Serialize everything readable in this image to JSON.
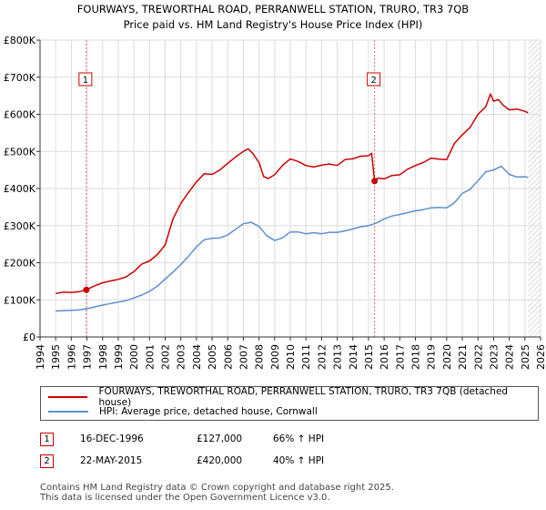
{
  "chart_data": {
    "type": "line",
    "title": "FOURWAYS, TREWORTHAL ROAD, PERRANWELL STATION, TRURO, TR3 7QB",
    "subtitle": "Price paid vs. HM Land Registry's House Price Index (HPI)",
    "xlabel": "",
    "ylabel": "",
    "xlim": [
      1994,
      2026
    ],
    "ylim": [
      0,
      800000
    ],
    "grid": true,
    "x_ticks": [
      "1994",
      "1995",
      "1996",
      "1997",
      "1998",
      "1999",
      "2000",
      "2001",
      "2002",
      "2003",
      "2004",
      "2005",
      "2006",
      "2007",
      "2008",
      "2009",
      "2010",
      "2011",
      "2012",
      "2013",
      "2014",
      "2015",
      "2016",
      "2017",
      "2018",
      "2019",
      "2020",
      "2021",
      "2022",
      "2023",
      "2024",
      "2025",
      "2026"
    ],
    "y_ticks": [
      {
        "value": 0,
        "label": "£0"
      },
      {
        "value": 100000,
        "label": "£100K"
      },
      {
        "value": 200000,
        "label": "£200K"
      },
      {
        "value": 300000,
        "label": "£300K"
      },
      {
        "value": 400000,
        "label": "£400K"
      },
      {
        "value": 500000,
        "label": "£500K"
      },
      {
        "value": 600000,
        "label": "£600K"
      },
      {
        "value": 700000,
        "label": "£700K"
      },
      {
        "value": 800000,
        "label": "£800K"
      }
    ],
    "series": [
      {
        "name": "FOURWAYS, TREWORTHAL ROAD, PERRANWELL STATION, TRURO, TR3 7QB (detached house)",
        "color": "#cc0000",
        "x": [
          1995.0,
          1995.5,
          1996.0,
          1996.5,
          1996.96,
          1997.5,
          1998.0,
          1998.5,
          1999.0,
          1999.5,
          2000.0,
          2000.5,
          2001.0,
          2001.5,
          2002.0,
          2002.5,
          2003.0,
          2003.5,
          2004.0,
          2004.5,
          2005.0,
          2005.5,
          2006.0,
          2006.5,
          2007.0,
          2007.3,
          2007.6,
          2008.0,
          2008.3,
          2008.6,
          2009.0,
          2009.5,
          2010.0,
          2010.5,
          2011.0,
          2011.5,
          2012.0,
          2012.5,
          2013.0,
          2013.5,
          2014.0,
          2014.5,
          2015.0,
          2015.2,
          2015.39,
          2015.6,
          2016.0,
          2016.5,
          2017.0,
          2017.5,
          2018.0,
          2018.5,
          2019.0,
          2019.5,
          2020.0,
          2020.5,
          2021.0,
          2021.5,
          2022.0,
          2022.5,
          2022.8,
          2023.0,
          2023.3,
          2023.6,
          2024.0,
          2024.5,
          2025.0,
          2025.2
        ],
        "values": [
          117000,
          121000,
          120000,
          122000,
          127000,
          138000,
          146000,
          151000,
          155000,
          162000,
          176000,
          196000,
          205000,
          222000,
          248000,
          318000,
          360000,
          390000,
          418000,
          440000,
          438000,
          450000,
          468000,
          485000,
          500000,
          507000,
          495000,
          470000,
          432000,
          427000,
          437000,
          462000,
          480000,
          473000,
          462000,
          458000,
          463000,
          466000,
          462000,
          478000,
          480000,
          487000,
          488000,
          495000,
          420000,
          428000,
          426000,
          435000,
          437000,
          452000,
          462000,
          470000,
          482000,
          479000,
          478000,
          522000,
          545000,
          565000,
          600000,
          620000,
          655000,
          635000,
          640000,
          625000,
          612000,
          614000,
          608000,
          604000
        ]
      },
      {
        "name": "HPI: Average price, detached house, Cornwall",
        "color": "#5b8fd0",
        "x": [
          1995.0,
          1995.5,
          1996.0,
          1996.5,
          1997.0,
          1997.5,
          1998.0,
          1998.5,
          1999.0,
          1999.5,
          2000.0,
          2000.5,
          2001.0,
          2001.5,
          2002.0,
          2002.5,
          2003.0,
          2003.5,
          2004.0,
          2004.5,
          2005.0,
          2005.5,
          2006.0,
          2006.5,
          2007.0,
          2007.5,
          2008.0,
          2008.5,
          2009.0,
          2009.5,
          2010.0,
          2010.5,
          2011.0,
          2011.5,
          2012.0,
          2012.5,
          2013.0,
          2013.5,
          2014.0,
          2014.5,
          2015.0,
          2015.5,
          2016.0,
          2016.5,
          2017.0,
          2017.5,
          2018.0,
          2018.5,
          2019.0,
          2019.5,
          2020.0,
          2020.5,
          2021.0,
          2021.5,
          2022.0,
          2022.5,
          2023.0,
          2023.5,
          2024.0,
          2024.5,
          2025.0,
          2025.2
        ],
        "values": [
          70000,
          71000,
          72000,
          73000,
          76000,
          81000,
          86000,
          90000,
          94000,
          98000,
          105000,
          113000,
          123000,
          137000,
          156000,
          175000,
          195000,
          218000,
          243000,
          262000,
          266000,
          267000,
          275000,
          290000,
          305000,
          309000,
          298000,
          273000,
          260000,
          267000,
          283000,
          283000,
          278000,
          281000,
          278000,
          282000,
          282000,
          286000,
          291000,
          297000,
          300000,
          307000,
          318000,
          326000,
          330000,
          335000,
          340000,
          343000,
          348000,
          349000,
          348000,
          362000,
          387000,
          398000,
          421000,
          445000,
          450000,
          460000,
          438000,
          431000,
          432000,
          430000
        ]
      }
    ],
    "sale_markers": [
      {
        "label": "1",
        "x": 1996.96,
        "value": 127000
      },
      {
        "label": "2",
        "x": 2015.39,
        "value": 420000
      }
    ]
  },
  "legend": {
    "items": [
      {
        "label": "FOURWAYS, TREWORTHAL ROAD, PERRANWELL STATION, TRURO, TR3 7QB (detached house)",
        "color": "#cc0000"
      },
      {
        "label": "HPI: Average price, detached house, Cornwall",
        "color": "#5b8fd0"
      }
    ]
  },
  "sales": [
    {
      "badge": "1",
      "date": "16-DEC-1996",
      "price": "£127,000",
      "hpi": "66% ↑ HPI"
    },
    {
      "badge": "2",
      "date": "22-MAY-2015",
      "price": "£420,000",
      "hpi": "40% ↑ HPI"
    }
  ],
  "footer": {
    "line1": "Contains HM Land Registry data © Crown copyright and database right 2025.",
    "line2": "This data is licensed under the Open Government Licence v3.0."
  }
}
